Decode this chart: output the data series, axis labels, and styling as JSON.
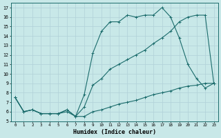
{
  "xlabel": "Humidex (Indice chaleur)",
  "bg_color": "#c8e8e8",
  "grid_color": "#b0d0d8",
  "line_color": "#1a6b6b",
  "xlim": [
    -0.5,
    23.5
  ],
  "ylim": [
    5,
    17.5
  ],
  "xticks": [
    0,
    1,
    2,
    3,
    4,
    5,
    6,
    7,
    8,
    9,
    10,
    11,
    12,
    13,
    14,
    15,
    16,
    17,
    18,
    19,
    20,
    21,
    22,
    23
  ],
  "yticks": [
    5,
    6,
    7,
    8,
    9,
    10,
    11,
    12,
    13,
    14,
    15,
    16,
    17
  ],
  "line1_x": [
    0,
    1,
    2,
    3,
    4,
    5,
    6,
    7,
    8,
    9,
    10,
    11,
    12,
    13,
    14,
    15,
    16,
    17,
    18,
    19,
    20,
    21,
    22,
    23
  ],
  "line1_y": [
    7.5,
    6.0,
    6.2,
    5.8,
    5.8,
    5.8,
    6.0,
    5.5,
    5.5,
    6.0,
    6.2,
    6.5,
    6.8,
    7.0,
    7.2,
    7.5,
    7.8,
    8.0,
    8.2,
    8.5,
    8.7,
    8.8,
    9.0,
    9.0
  ],
  "line2_x": [
    0,
    1,
    2,
    3,
    4,
    5,
    6,
    7,
    8,
    9,
    10,
    11,
    12,
    13,
    14,
    15,
    16,
    17,
    18,
    19,
    20,
    21,
    22,
    23
  ],
  "line2_y": [
    7.5,
    6.0,
    6.2,
    5.8,
    5.8,
    5.8,
    6.2,
    5.5,
    7.8,
    12.2,
    14.5,
    15.5,
    15.5,
    16.2,
    16.0,
    16.2,
    16.2,
    17.0,
    16.0,
    13.8,
    11.0,
    9.5,
    8.5,
    9.0
  ],
  "line3_x": [
    0,
    1,
    2,
    3,
    4,
    5,
    6,
    7,
    8,
    9,
    10,
    11,
    12,
    13,
    14,
    15,
    16,
    17,
    18,
    19,
    20,
    21,
    22,
    23
  ],
  "line3_y": [
    7.5,
    6.0,
    6.2,
    5.8,
    5.8,
    5.8,
    6.2,
    5.5,
    6.5,
    8.8,
    9.5,
    10.5,
    11.0,
    11.5,
    12.0,
    12.5,
    13.2,
    13.8,
    14.5,
    15.5,
    16.0,
    16.2,
    16.2,
    9.0
  ]
}
